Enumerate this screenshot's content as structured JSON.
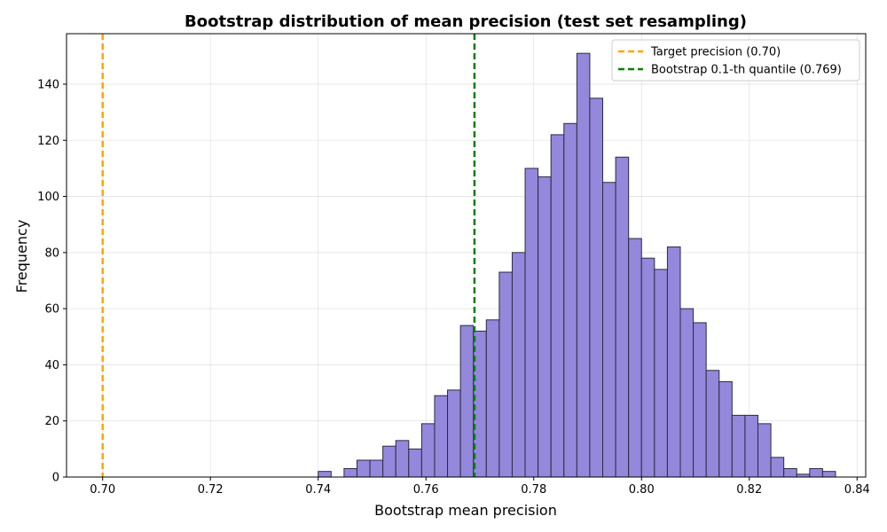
{
  "chart_data": {
    "type": "bar",
    "title": "Bootstrap distribution of mean precision (test set resampling)",
    "xlabel": "Bootstrap mean precision",
    "ylabel": "Frequency",
    "xlim": [
      0.6933,
      0.8416
    ],
    "ylim": [
      0,
      158
    ],
    "xticks": [
      0.7,
      0.72,
      0.74,
      0.76,
      0.78,
      0.8,
      0.82,
      0.84
    ],
    "xtick_labels": [
      "0.70",
      "0.72",
      "0.74",
      "0.76",
      "0.78",
      "0.80",
      "0.82",
      "0.84"
    ],
    "yticks": [
      0,
      20,
      40,
      60,
      80,
      100,
      120,
      140
    ],
    "yticks_labels": [
      "0",
      "20",
      "40",
      "60",
      "80",
      "100",
      "120",
      "140"
    ],
    "grid": true,
    "bar_color": "#9388db",
    "bar_edge_color": "#2b2b40",
    "bins": {
      "start": 0.74,
      "width": 0.0024,
      "counts": [
        2,
        0,
        3,
        6,
        6,
        11,
        13,
        10,
        19,
        29,
        31,
        54,
        52,
        56,
        73,
        80,
        110,
        107,
        122,
        126,
        151,
        135,
        105,
        114,
        85,
        78,
        74,
        82,
        60,
        55,
        38,
        34,
        22,
        22,
        19,
        7,
        3,
        1,
        3,
        2
      ]
    },
    "reference_lines": [
      {
        "name": "Target precision (0.70)",
        "x": 0.7,
        "color": "#ffa500",
        "style": "dashed"
      },
      {
        "name": "Bootstrap 0.1-th quantile (0.769)",
        "x": 0.769,
        "color": "#008000",
        "style": "dashed"
      }
    ],
    "legend_placement": "top-right"
  }
}
